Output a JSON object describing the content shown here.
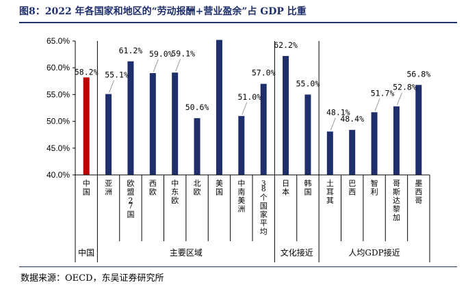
{
  "title": "图8：2022 年各国家和地区的“劳动报酬+营业盈余”占 GDP 比重",
  "source": "数据来源：OECD，东吴证券研究所",
  "colors": {
    "china": "#c00000",
    "others": "#1f2f6b",
    "label_line": "#7f7f7f",
    "axis": "#000000"
  },
  "chart_data": {
    "type": "bar",
    "title": "2022 年各国家和地区的“劳动报酬+营业盈余”占 GDP 比重",
    "xlabel": "",
    "ylabel": "",
    "ylim": [
      40,
      65
    ],
    "yticks": [
      "40.0%",
      "45.0%",
      "50.0%",
      "55.0%",
      "60.0%",
      "65.0%"
    ],
    "ytick_values": [
      40,
      45,
      50,
      55,
      60,
      65
    ],
    "grid": false,
    "categories": [
      "中国",
      "亚洲",
      "欧盟27国",
      "西欧",
      "中东欧",
      "北欧",
      "美国",
      "中南美洲",
      "38个国家平均",
      "日本",
      "韩国",
      "土耳其",
      "巴西",
      "智利",
      "哥斯达黎加",
      "墨西哥"
    ],
    "values": [
      58.2,
      55.1,
      61.2,
      59.0,
      59.1,
      50.6,
      65.2,
      51.0,
      57.0,
      62.2,
      55.0,
      48.1,
      48.4,
      51.7,
      52.8,
      56.8
    ],
    "labels": [
      "58.2%",
      "55.1%",
      "61.2%",
      "59.0%",
      "59.1%",
      "50.6%",
      "",
      "51.0%",
      "57.0%",
      "62.2%",
      "55.0%",
      "48.1%",
      "48.4%",
      "51.7%",
      "52.8%",
      "56.8%"
    ],
    "groups": [
      {
        "name": "中国",
        "start": 0,
        "end": 0
      },
      {
        "name": "主要区域",
        "start": 1,
        "end": 8
      },
      {
        "name": "文化接近",
        "start": 9,
        "end": 10
      },
      {
        "name": "人均GDP接近",
        "start": 11,
        "end": 15
      }
    ]
  }
}
